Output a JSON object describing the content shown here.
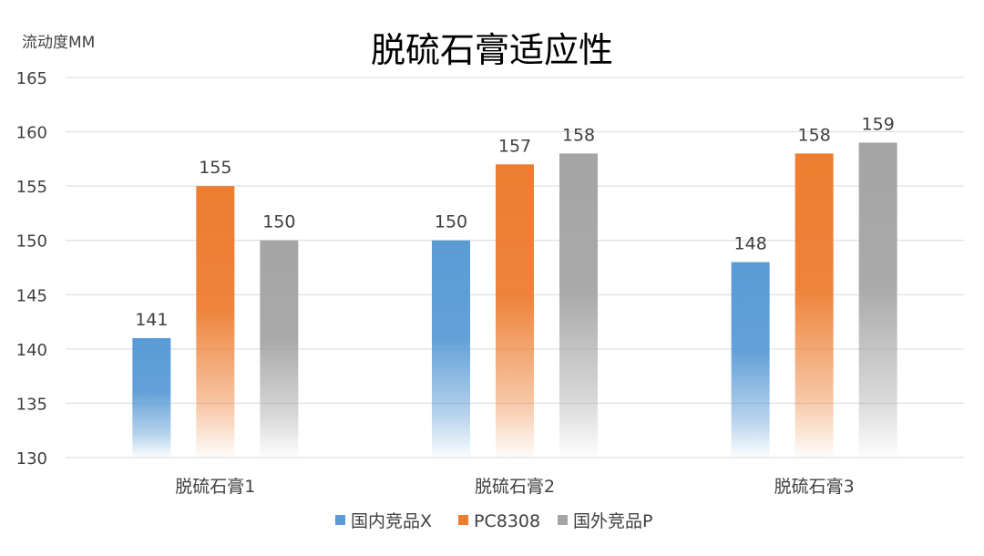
{
  "colors": {
    "background": "#ffffff",
    "gridline": "#d9d9d9",
    "axis_text": "#404040",
    "title_text": "#000000"
  },
  "chart_data": {
    "type": "bar",
    "title": "脱硫石膏适应性",
    "ylabel": "流动度MM",
    "xlabel": "",
    "ylim": [
      130,
      165
    ],
    "yticks": [
      130,
      135,
      140,
      145,
      150,
      155,
      160,
      165
    ],
    "grid": true,
    "legend_position": "bottom",
    "categories": [
      "脱硫石膏1",
      "脱硫石膏2",
      "脱硫石膏3"
    ],
    "series": [
      {
        "name": "国内竞品X",
        "color": "#5b9bd5",
        "values": [
          141,
          150,
          148
        ]
      },
      {
        "name": "PC8308",
        "color": "#ed7d31",
        "values": [
          155,
          157,
          158
        ]
      },
      {
        "name": "国外竞品P",
        "color": "#a5a5a5",
        "values": [
          150,
          158,
          159
        ]
      }
    ]
  }
}
